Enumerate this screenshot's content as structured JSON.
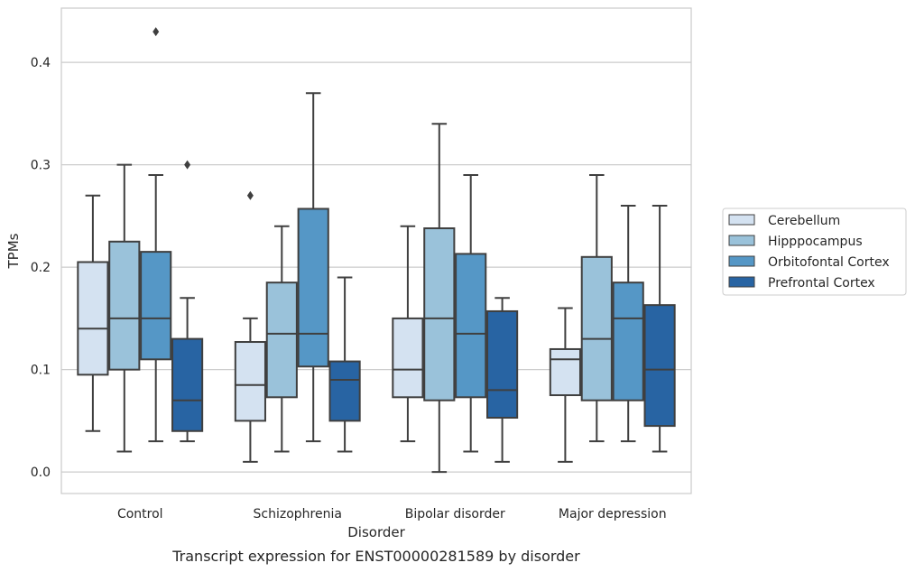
{
  "chart_data": {
    "type": "box",
    "categories": [
      "Control",
      "Schizophrenia",
      "Bipolar disorder",
      "Major depression"
    ],
    "xlabel": "Disorder",
    "ylabel": "TPMs",
    "caption": "Transcript expression for ENST00000281589 by disorder",
    "ylim": [
      -0.021,
      0.453
    ],
    "yticks": [
      "0.0",
      "0.1",
      "0.2",
      "0.3",
      "0.4"
    ],
    "grid": "horizontal",
    "legend_position": "right",
    "series": [
      {
        "name": "Cerebellum",
        "color": "#d4e2f1",
        "boxes": [
          {
            "min": 0.04,
            "q1": 0.095,
            "median": 0.14,
            "q3": 0.205,
            "max": 0.27,
            "outliers": []
          },
          {
            "min": 0.01,
            "q1": 0.05,
            "median": 0.085,
            "q3": 0.127,
            "max": 0.15,
            "outliers": [
              0.27
            ]
          },
          {
            "min": 0.03,
            "q1": 0.073,
            "median": 0.1,
            "q3": 0.15,
            "max": 0.24,
            "outliers": []
          },
          {
            "min": 0.01,
            "q1": 0.075,
            "median": 0.11,
            "q3": 0.12,
            "max": 0.16,
            "outliers": []
          }
        ]
      },
      {
        "name": "Hipppocampus",
        "color": "#9ac2da",
        "boxes": [
          {
            "min": 0.02,
            "q1": 0.1,
            "median": 0.15,
            "q3": 0.225,
            "max": 0.3,
            "outliers": []
          },
          {
            "min": 0.02,
            "q1": 0.073,
            "median": 0.135,
            "q3": 0.185,
            "max": 0.24,
            "outliers": []
          },
          {
            "min": 0.0,
            "q1": 0.07,
            "median": 0.15,
            "q3": 0.238,
            "max": 0.34,
            "outliers": []
          },
          {
            "min": 0.03,
            "q1": 0.07,
            "median": 0.13,
            "q3": 0.21,
            "max": 0.29,
            "outliers": []
          }
        ]
      },
      {
        "name": "Orbitofontal Cortex",
        "color": "#5597c6",
        "boxes": [
          {
            "min": 0.03,
            "q1": 0.11,
            "median": 0.15,
            "q3": 0.215,
            "max": 0.29,
            "outliers": [
              0.43
            ]
          },
          {
            "min": 0.03,
            "q1": 0.103,
            "median": 0.135,
            "q3": 0.257,
            "max": 0.37,
            "outliers": []
          },
          {
            "min": 0.02,
            "q1": 0.073,
            "median": 0.135,
            "q3": 0.213,
            "max": 0.29,
            "outliers": []
          },
          {
            "min": 0.03,
            "q1": 0.07,
            "median": 0.15,
            "q3": 0.185,
            "max": 0.26,
            "outliers": []
          }
        ]
      },
      {
        "name": "Prefrontal Cortex",
        "color": "#2864a3",
        "boxes": [
          {
            "min": 0.03,
            "q1": 0.04,
            "median": 0.07,
            "q3": 0.13,
            "max": 0.17,
            "outliers": [
              0.3
            ]
          },
          {
            "min": 0.02,
            "q1": 0.05,
            "median": 0.09,
            "q3": 0.108,
            "max": 0.19,
            "outliers": []
          },
          {
            "min": 0.01,
            "q1": 0.053,
            "median": 0.08,
            "q3": 0.157,
            "max": 0.17,
            "outliers": []
          },
          {
            "min": 0.02,
            "q1": 0.045,
            "median": 0.1,
            "q3": 0.163,
            "max": 0.26,
            "outliers": []
          }
        ]
      }
    ]
  }
}
